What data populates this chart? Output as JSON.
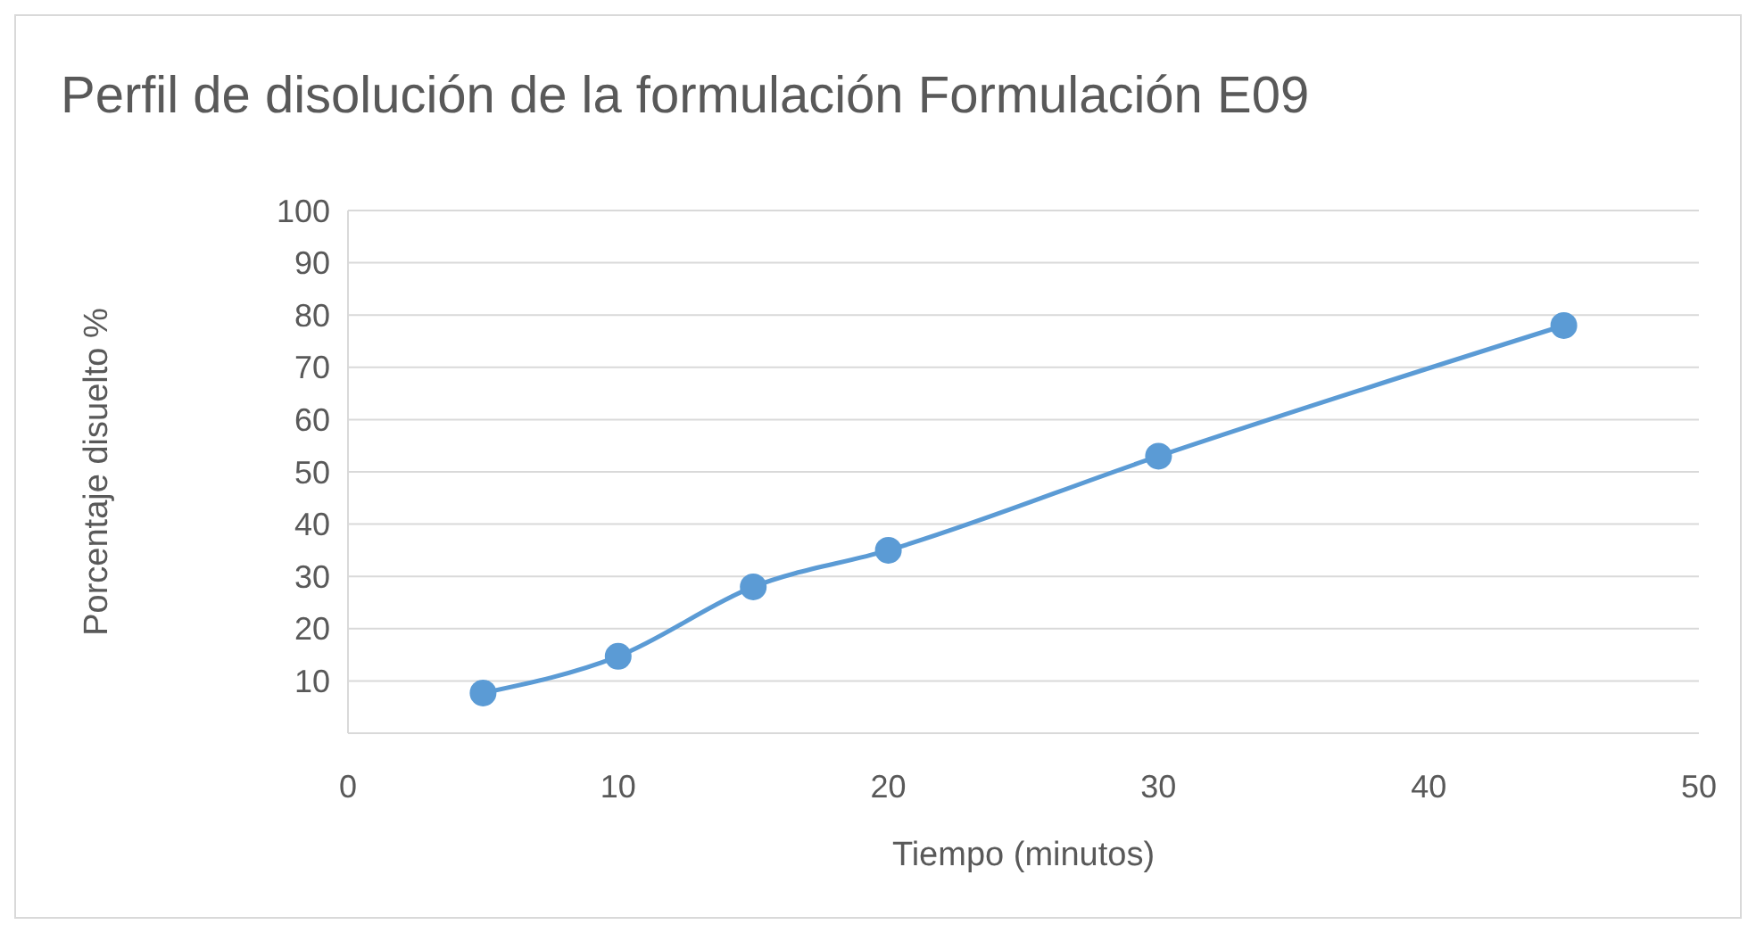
{
  "chart_data": {
    "type": "line",
    "title": "Perfil de disolución de la formulación Formulación E09",
    "xlabel": "Tiempo (minutos)",
    "ylabel": "Porcentaje disuelto %",
    "x": [
      5,
      10,
      15,
      20,
      30,
      45
    ],
    "series": [
      {
        "color": "#5b9bd5",
        "values": [
          7.7,
          14.7,
          28,
          35,
          53,
          78
        ]
      }
    ],
    "xlim": [
      0,
      50
    ],
    "xticks": [
      0,
      10,
      20,
      30,
      40,
      50
    ],
    "ylim": [
      0,
      100
    ],
    "yticks": [
      10,
      20,
      30,
      40,
      50,
      60,
      70,
      80,
      90,
      100
    ],
    "grid": "y",
    "marker": "circle",
    "line_style": "solid"
  }
}
